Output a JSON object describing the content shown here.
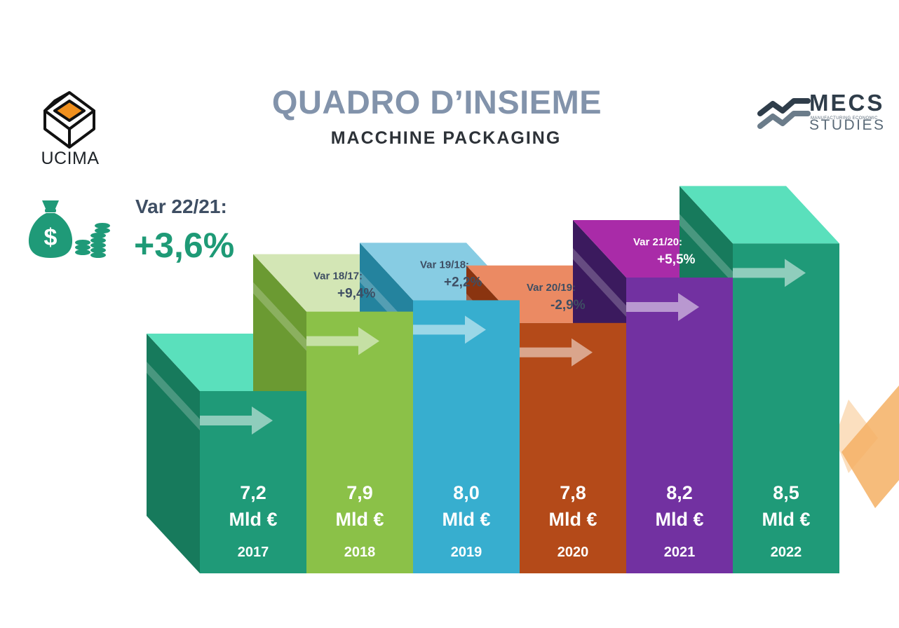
{
  "header": {
    "title": "QUADRO D’INSIEME",
    "subtitle": "MACCHINE PACKAGING"
  },
  "logos": {
    "left": "UCIMA",
    "right_top": "MECS",
    "right_small": "MANUFACTURING ECONOMIC",
    "right_bottom": "STUDIES"
  },
  "highlight": {
    "label": "Var 22/21:",
    "value": "+3,6%",
    "icon": "money-bag-icon"
  },
  "chart_data": {
    "type": "bar",
    "categories": [
      "2017",
      "2018",
      "2019",
      "2020",
      "2021",
      "2022"
    ],
    "values": [
      7.2,
      7.9,
      8.0,
      7.8,
      8.2,
      8.5
    ],
    "unit": "Mld €",
    "value_labels": [
      "7,2",
      "7,9",
      "8,0",
      "7,8",
      "8,2",
      "8,5"
    ],
    "variations": [
      {
        "label": "",
        "value": ""
      },
      {
        "label": "Var 18/17:",
        "value": "+9,4%"
      },
      {
        "label": "Var 19/18:",
        "value": "+2,2%"
      },
      {
        "label": "Var 20/19:",
        "value": "-2,9%"
      },
      {
        "label": "Var 21/20:",
        "value": "+5,5%"
      },
      {
        "label": "",
        "value": ""
      }
    ],
    "colors": {
      "front": [
        "#1f9a78",
        "#8bc148",
        "#37aecf",
        "#b44a19",
        "#7231a1",
        "#1f9a78"
      ],
      "top": [
        "#5ae0bc",
        "#d3e6b5",
        "#87cce3",
        "#eb8a63",
        "#a92ba8",
        "#5ae0bc"
      ],
      "side": [
        "#177a5c",
        "#6b9a32",
        "#24839e",
        "#8a3410",
        "#3b1a5e",
        "#177a5c"
      ]
    }
  }
}
